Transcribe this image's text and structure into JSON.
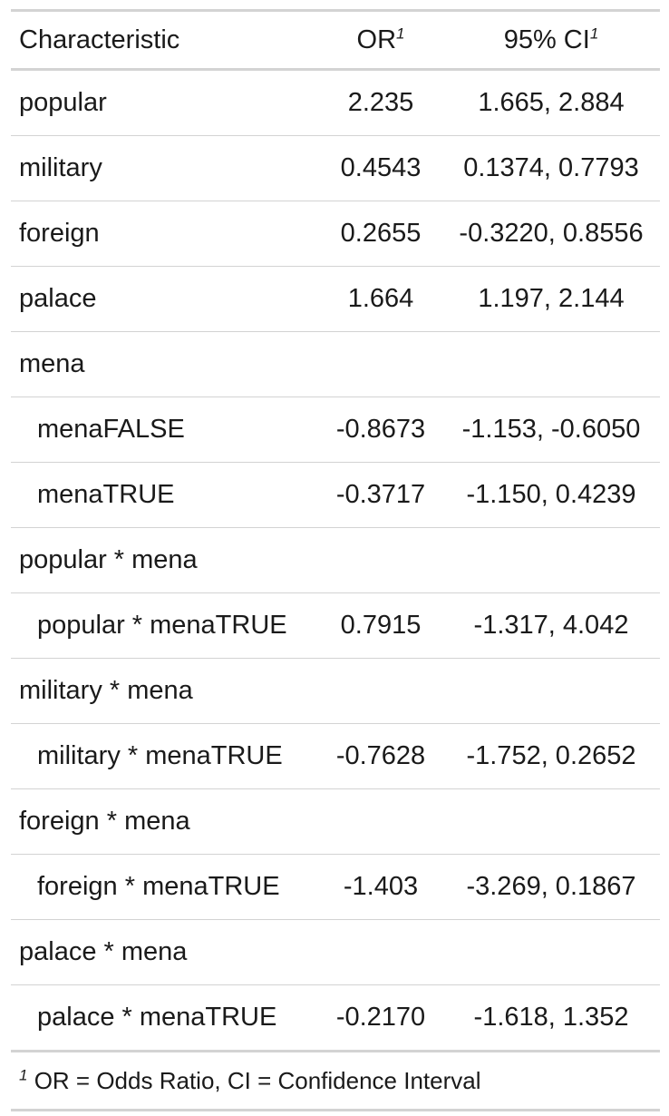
{
  "table": {
    "headers": {
      "characteristic": "Characteristic",
      "or": "OR",
      "ci": "95% CI",
      "or_note": "1",
      "ci_note": "1"
    },
    "rows": [
      {
        "label": "popular",
        "or": "2.235",
        "ci": "1.665, 2.884",
        "indent": false
      },
      {
        "label": "military",
        "or": "0.4543",
        "ci": "0.1374, 0.7793",
        "indent": false
      },
      {
        "label": "foreign",
        "or": "0.2655",
        "ci": "-0.3220, 0.8556",
        "indent": false
      },
      {
        "label": "palace",
        "or": "1.664",
        "ci": "1.197, 2.144",
        "indent": false
      },
      {
        "label": "mena",
        "or": "",
        "ci": "",
        "indent": false
      },
      {
        "label": "menaFALSE",
        "or": "-0.8673",
        "ci": "-1.153, -0.6050",
        "indent": true
      },
      {
        "label": "menaTRUE",
        "or": "-0.3717",
        "ci": "-1.150, 0.4239",
        "indent": true
      },
      {
        "label": "popular * mena",
        "or": "",
        "ci": "",
        "indent": false
      },
      {
        "label": "popular * menaTRUE",
        "or": "0.7915",
        "ci": "-1.317, 4.042",
        "indent": true
      },
      {
        "label": "military * mena",
        "or": "",
        "ci": "",
        "indent": false
      },
      {
        "label": "military * menaTRUE",
        "or": "-0.7628",
        "ci": "-1.752, 0.2652",
        "indent": true
      },
      {
        "label": "foreign * mena",
        "or": "",
        "ci": "",
        "indent": false
      },
      {
        "label": "foreign * menaTRUE",
        "or": "-1.403",
        "ci": "-3.269, 0.1867",
        "indent": true
      },
      {
        "label": "palace * mena",
        "or": "",
        "ci": "",
        "indent": false
      },
      {
        "label": "palace * menaTRUE",
        "or": "-0.2170",
        "ci": "-1.618, 1.352",
        "indent": true
      }
    ],
    "footnote": {
      "marker": "1",
      "text": "OR = Odds Ratio, CI = Confidence Interval"
    }
  }
}
